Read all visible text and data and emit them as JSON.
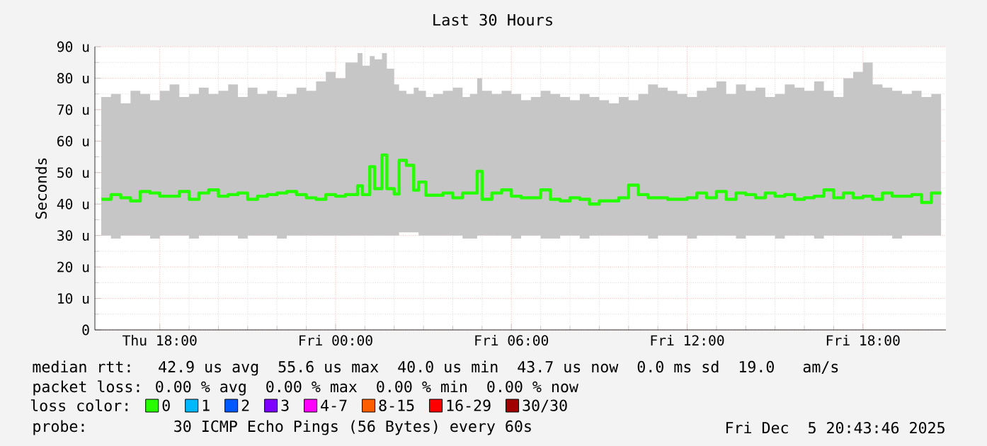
{
  "chart_data": {
    "type": "step",
    "title": "Last 30 Hours",
    "ylabel": "Seconds",
    "xlim": [
      "2025-12-04T15:47",
      "2025-12-05T20:50"
    ],
    "xticks": [
      {
        "value": "2025-12-04T18:00",
        "label": "Thu 18:00"
      },
      {
        "value": "2025-12-05T00:00",
        "label": "Fri 00:00"
      },
      {
        "value": "2025-12-05T06:00",
        "label": "Fri 06:00"
      },
      {
        "value": "2025-12-05T12:00",
        "label": "Fri 12:00"
      },
      {
        "value": "2025-12-05T18:00",
        "label": "Fri 18:00"
      }
    ],
    "ylim": [
      0,
      90
    ],
    "yticks": [
      0,
      {
        "value": 10,
        "label": "10 u"
      },
      {
        "value": 20,
        "label": "20 u"
      },
      {
        "value": 30,
        "label": "30 u"
      },
      {
        "value": 40,
        "label": "40 u"
      },
      {
        "value": 50,
        "label": "50 u"
      },
      {
        "value": 60,
        "label": "60 u"
      },
      {
        "value": 70,
        "label": "70 u"
      },
      {
        "value": 80,
        "label": "80 u"
      },
      {
        "value": 90,
        "label": "90 u"
      }
    ],
    "grid": true,
    "legend": "bottom",
    "legend_title": "loss color:",
    "x": [
      "2025-12-04T16:00",
      "2025-12-04T16:20",
      "2025-12-04T16:40",
      "2025-12-04T17:00",
      "2025-12-04T17:20",
      "2025-12-04T17:40",
      "2025-12-04T18:00",
      "2025-12-04T18:20",
      "2025-12-04T18:40",
      "2025-12-04T19:00",
      "2025-12-04T19:20",
      "2025-12-04T19:40",
      "2025-12-04T20:00",
      "2025-12-04T20:20",
      "2025-12-04T20:40",
      "2025-12-04T21:00",
      "2025-12-04T21:20",
      "2025-12-04T21:40",
      "2025-12-04T22:00",
      "2025-12-04T22:20",
      "2025-12-04T22:40",
      "2025-12-04T23:00",
      "2025-12-04T23:20",
      "2025-12-04T23:40",
      "2025-12-05T00:00",
      "2025-12-05T00:20",
      "2025-12-05T00:45",
      "2025-12-05T00:55",
      "2025-12-05T01:10",
      "2025-12-05T01:20",
      "2025-12-05T01:35",
      "2025-12-05T01:45",
      "2025-12-05T02:00",
      "2025-12-05T02:10",
      "2025-12-05T02:25",
      "2025-12-05T02:40",
      "2025-12-05T02:50",
      "2025-12-05T03:05",
      "2025-12-05T03:20",
      "2025-12-05T03:40",
      "2025-12-05T04:00",
      "2025-12-05T04:20",
      "2025-12-05T04:35",
      "2025-12-05T04:50",
      "2025-12-05T05:00",
      "2025-12-05T05:20",
      "2025-12-05T05:40",
      "2025-12-05T06:00",
      "2025-12-05T06:20",
      "2025-12-05T06:40",
      "2025-12-05T07:00",
      "2025-12-05T07:20",
      "2025-12-05T07:40",
      "2025-12-05T08:00",
      "2025-12-05T08:20",
      "2025-12-05T08:40",
      "2025-12-05T09:00",
      "2025-12-05T09:20",
      "2025-12-05T09:40",
      "2025-12-05T10:00",
      "2025-12-05T10:20",
      "2025-12-05T10:40",
      "2025-12-05T11:00",
      "2025-12-05T11:20",
      "2025-12-05T11:40",
      "2025-12-05T12:00",
      "2025-12-05T12:20",
      "2025-12-05T12:40",
      "2025-12-05T13:00",
      "2025-12-05T13:20",
      "2025-12-05T13:40",
      "2025-12-05T14:00",
      "2025-12-05T14:20",
      "2025-12-05T14:40",
      "2025-12-05T15:00",
      "2025-12-05T15:20",
      "2025-12-05T15:40",
      "2025-12-05T16:00",
      "2025-12-05T16:20",
      "2025-12-05T16:40",
      "2025-12-05T17:00",
      "2025-12-05T17:20",
      "2025-12-05T17:40",
      "2025-12-05T18:00",
      "2025-12-05T18:20",
      "2025-12-05T18:40",
      "2025-12-05T19:00",
      "2025-12-05T19:20",
      "2025-12-05T19:40",
      "2025-12-05T20:00",
      "2025-12-05T20:20",
      "2025-12-05T20:40"
    ],
    "series": [
      {
        "name": "0",
        "color": "#26ff00",
        "values": [
          41.5,
          43,
          42,
          41,
          44,
          43.5,
          42.5,
          42.5,
          44,
          41.5,
          43.5,
          44.5,
          42.5,
          43,
          43.5,
          41.5,
          42.5,
          43,
          43.5,
          44,
          43,
          42,
          41.5,
          43,
          42.5,
          43,
          45.8,
          43,
          51.9,
          44.9,
          55.6,
          44.9,
          43.2,
          53.9,
          52.3,
          44.4,
          47,
          42.8,
          42.8,
          43.5,
          42,
          43.5,
          43.5,
          50.4,
          41.5,
          43.5,
          44.5,
          42.5,
          42,
          42,
          44.5,
          41.5,
          41,
          42,
          41.5,
          40,
          41,
          41,
          42,
          46,
          43,
          42,
          42,
          41.5,
          41.5,
          42,
          43.5,
          42,
          44,
          41.5,
          43.5,
          43,
          42,
          43.5,
          42.5,
          43,
          41.5,
          42,
          42.5,
          44.5,
          42,
          43.5,
          42,
          42.5,
          41.5,
          43.5,
          42.5,
          42.5,
          43,
          40.5,
          43.5,
          43.5
        ],
        "lower": [
          30,
          30,
          29,
          30,
          30,
          30,
          29,
          30,
          30,
          30,
          29,
          30,
          30,
          30,
          30,
          29,
          30,
          30,
          30,
          29,
          30,
          30,
          30,
          30,
          30,
          30,
          30,
          30,
          30,
          30,
          30,
          30,
          30,
          30,
          31,
          31,
          31,
          30,
          30,
          30,
          30,
          30,
          29,
          29,
          30,
          30,
          30,
          30,
          29,
          30,
          30,
          29,
          29,
          30,
          30,
          29,
          30,
          30,
          30,
          30,
          30,
          30,
          29,
          30,
          30,
          30,
          29,
          30,
          30,
          30,
          30,
          29,
          30,
          30,
          30,
          29,
          30,
          30,
          30,
          29,
          30,
          30,
          30,
          30,
          30,
          30,
          30,
          29,
          30,
          30,
          30,
          30
        ],
        "upper": [
          74,
          75,
          72,
          76,
          75,
          73,
          76,
          78,
          74,
          75,
          77,
          75,
          76,
          78,
          74,
          77,
          75,
          76,
          74,
          75,
          77,
          76,
          79,
          82,
          80,
          85,
          88,
          84,
          87,
          86,
          88,
          83,
          78,
          76,
          75,
          77,
          76,
          74,
          75,
          76,
          77,
          74,
          75,
          80,
          76,
          75,
          76,
          75,
          73,
          74,
          76,
          75,
          74,
          73,
          75,
          74,
          73,
          72,
          74,
          73,
          75,
          78,
          77,
          76,
          75,
          74,
          76,
          77,
          79,
          75,
          78,
          76,
          77,
          74,
          75,
          78,
          77,
          76,
          79,
          76,
          74,
          80,
          82,
          85,
          78,
          77,
          76,
          75,
          76,
          74,
          75,
          76
        ]
      },
      {
        "name": "1",
        "color": "#00b8ff",
        "values": [
          null,
          null,
          null,
          null,
          null,
          null,
          null,
          null,
          null,
          null,
          null,
          null,
          null,
          null,
          null,
          null,
          null,
          null,
          null,
          null,
          null,
          null,
          null,
          null,
          null,
          null,
          null,
          null,
          null,
          null,
          null,
          null,
          null,
          null,
          null,
          null,
          null,
          null,
          null,
          null,
          null,
          null,
          null,
          null,
          null,
          null,
          null,
          null,
          null,
          null,
          null,
          null,
          null,
          null,
          null,
          null,
          null,
          null,
          null,
          null,
          null,
          null,
          null,
          null,
          null,
          null,
          null,
          null,
          null,
          null,
          null,
          null,
          null,
          null,
          null,
          null,
          null,
          null,
          null,
          null,
          null,
          null,
          null,
          null,
          null,
          null,
          null,
          null,
          null,
          null,
          null,
          null
        ]
      },
      {
        "name": "2",
        "color": "#0059ff",
        "values": [
          null,
          null,
          null,
          null,
          null,
          null,
          null,
          null,
          null,
          null,
          null,
          null,
          null,
          null,
          null,
          null,
          null,
          null,
          null,
          null,
          null,
          null,
          null,
          null,
          null,
          null,
          null,
          null,
          null,
          null,
          null,
          null,
          null,
          null,
          null,
          null,
          null,
          null,
          null,
          null,
          null,
          null,
          null,
          null,
          null,
          null,
          null,
          null,
          null,
          null,
          null,
          null,
          null,
          null,
          null,
          null,
          null,
          null,
          null,
          null,
          null,
          null,
          null,
          null,
          null,
          null,
          null,
          null,
          null,
          null,
          null,
          null,
          null,
          null,
          null,
          null,
          null,
          null,
          null,
          null,
          null,
          null,
          null,
          null,
          null,
          null,
          null,
          null,
          null,
          null,
          null,
          null
        ]
      },
      {
        "name": "3",
        "color": "#7e00ff",
        "values": [
          null,
          null,
          null,
          null,
          null,
          null,
          null,
          null,
          null,
          null,
          null,
          null,
          null,
          null,
          null,
          null,
          null,
          null,
          null,
          null,
          null,
          null,
          null,
          null,
          null,
          null,
          null,
          null,
          null,
          null,
          null,
          null,
          null,
          null,
          null,
          null,
          null,
          null,
          null,
          null,
          null,
          null,
          null,
          null,
          null,
          null,
          null,
          null,
          null,
          null,
          null,
          null,
          null,
          null,
          null,
          null,
          null,
          null,
          null,
          null,
          null,
          null,
          null,
          null,
          null,
          null,
          null,
          null,
          null,
          null,
          null,
          null,
          null,
          null,
          null,
          null,
          null,
          null,
          null,
          null,
          null,
          null,
          null,
          null,
          null,
          null,
          null,
          null,
          null,
          null,
          null,
          null
        ]
      },
      {
        "name": "4-7",
        "color": "#ff00ff",
        "values": [
          null,
          null,
          null,
          null,
          null,
          null,
          null,
          null,
          null,
          null,
          null,
          null,
          null,
          null,
          null,
          null,
          null,
          null,
          null,
          null,
          null,
          null,
          null,
          null,
          null,
          null,
          null,
          null,
          null,
          null,
          null,
          null,
          null,
          null,
          null,
          null,
          null,
          null,
          null,
          null,
          null,
          null,
          null,
          null,
          null,
          null,
          null,
          null,
          null,
          null,
          null,
          null,
          null,
          null,
          null,
          null,
          null,
          null,
          null,
          null,
          null,
          null,
          null,
          null,
          null,
          null,
          null,
          null,
          null,
          null,
          null,
          null,
          null,
          null,
          null,
          null,
          null,
          null,
          null,
          null,
          null,
          null,
          null,
          null,
          null,
          null,
          null,
          null,
          null,
          null,
          null,
          null
        ]
      },
      {
        "name": "8-15",
        "color": "#ff5e00",
        "values": [
          null,
          null,
          null,
          null,
          null,
          null,
          null,
          null,
          null,
          null,
          null,
          null,
          null,
          null,
          null,
          null,
          null,
          null,
          null,
          null,
          null,
          null,
          null,
          null,
          null,
          null,
          null,
          null,
          null,
          null,
          null,
          null,
          null,
          null,
          null,
          null,
          null,
          null,
          null,
          null,
          null,
          null,
          null,
          null,
          null,
          null,
          null,
          null,
          null,
          null,
          null,
          null,
          null,
          null,
          null,
          null,
          null,
          null,
          null,
          null,
          null,
          null,
          null,
          null,
          null,
          null,
          null,
          null,
          null,
          null,
          null,
          null,
          null,
          null,
          null,
          null,
          null,
          null,
          null,
          null,
          null,
          null,
          null,
          null,
          null,
          null,
          null,
          null,
          null,
          null,
          null,
          null
        ]
      },
      {
        "name": "16-29",
        "color": "#ff0000",
        "values": [
          null,
          null,
          null,
          null,
          null,
          null,
          null,
          null,
          null,
          null,
          null,
          null,
          null,
          null,
          null,
          null,
          null,
          null,
          null,
          null,
          null,
          null,
          null,
          null,
          null,
          null,
          null,
          null,
          null,
          null,
          null,
          null,
          null,
          null,
          null,
          null,
          null,
          null,
          null,
          null,
          null,
          null,
          null,
          null,
          null,
          null,
          null,
          null,
          null,
          null,
          null,
          null,
          null,
          null,
          null,
          null,
          null,
          null,
          null,
          null,
          null,
          null,
          null,
          null,
          null,
          null,
          null,
          null,
          null,
          null,
          null,
          null,
          null,
          null,
          null,
          null,
          null,
          null,
          null,
          null,
          null,
          null,
          null,
          null,
          null,
          null,
          null,
          null,
          null,
          null,
          null,
          null
        ]
      },
      {
        "name": "30/30",
        "color": "#a10000",
        "values": [
          null,
          null,
          null,
          null,
          null,
          null,
          null,
          null,
          null,
          null,
          null,
          null,
          null,
          null,
          null,
          null,
          null,
          null,
          null,
          null,
          null,
          null,
          null,
          null,
          null,
          null,
          null,
          null,
          null,
          null,
          null,
          null,
          null,
          null,
          null,
          null,
          null,
          null,
          null,
          null,
          null,
          null,
          null,
          null,
          null,
          null,
          null,
          null,
          null,
          null,
          null,
          null,
          null,
          null,
          null,
          null,
          null,
          null,
          null,
          null,
          null,
          null,
          null,
          null,
          null,
          null,
          null,
          null,
          null,
          null,
          null,
          null,
          null,
          null,
          null,
          null,
          null,
          null,
          null,
          null,
          null,
          null,
          null,
          null,
          null,
          null,
          null,
          null,
          null,
          null,
          null,
          null
        ]
      }
    ],
    "annotations": [
      "median rtt:  42.9 us avg  55.6 us max  40.0 us min  43.7 us now  0.0 ms sd  19.0   am/s",
      "packet loss: 0.00 % avg  0.00 % max  0.00 % min  0.00 % now",
      "probe:       30 ICMP Echo Pings (56 Bytes) every 60s",
      "Fri Dec  5 20:43:46 2025"
    ]
  }
}
